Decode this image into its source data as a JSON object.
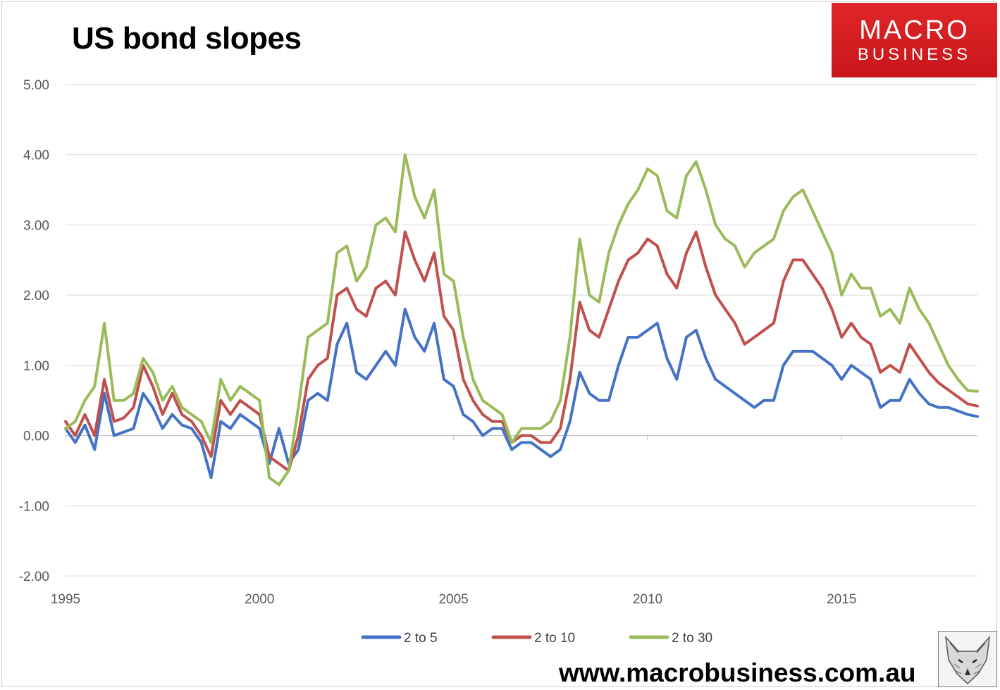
{
  "title": "US bond slopes",
  "logo": {
    "line1": "MACRO",
    "line2": "BUSINESS",
    "background": "#d91f24",
    "text_color": "#ffffff"
  },
  "website": "www.macrobusiness.com.au",
  "fox_icon": "fox-head-sketch-icon",
  "chart_data": {
    "type": "line",
    "title": "US bond slopes",
    "xlabel": "",
    "ylabel": "",
    "ylim": [
      -2,
      5
    ],
    "yticks": [
      "5.00",
      "4.00",
      "3.00",
      "2.00",
      "1.00",
      "0.00",
      "-1.00",
      "-2.00"
    ],
    "xlim": [
      1995,
      2018.5
    ],
    "xticks": [
      "1995",
      "2000",
      "2005",
      "2010",
      "2015"
    ],
    "grid": "horizontal",
    "legend_position": "bottom",
    "series": [
      {
        "name": "2 to 5",
        "color": "#4472c4",
        "points": [
          [
            1995.0,
            0.1
          ],
          [
            1995.25,
            -0.1
          ],
          [
            1995.5,
            0.15
          ],
          [
            1995.75,
            -0.2
          ],
          [
            1996.0,
            0.6
          ],
          [
            1996.25,
            0.0
          ],
          [
            1996.5,
            0.05
          ],
          [
            1996.75,
            0.1
          ],
          [
            1997.0,
            0.6
          ],
          [
            1997.25,
            0.4
          ],
          [
            1997.5,
            0.1
          ],
          [
            1997.75,
            0.3
          ],
          [
            1998.0,
            0.15
          ],
          [
            1998.25,
            0.1
          ],
          [
            1998.5,
            -0.1
          ],
          [
            1998.75,
            -0.6
          ],
          [
            1999.0,
            0.2
          ],
          [
            1999.25,
            0.1
          ],
          [
            1999.5,
            0.3
          ],
          [
            1999.75,
            0.2
          ],
          [
            2000.0,
            0.1
          ],
          [
            2000.25,
            -0.4
          ],
          [
            2000.5,
            0.1
          ],
          [
            2000.75,
            -0.4
          ],
          [
            2001.0,
            -0.2
          ],
          [
            2001.25,
            0.5
          ],
          [
            2001.5,
            0.6
          ],
          [
            2001.75,
            0.5
          ],
          [
            2002.0,
            1.3
          ],
          [
            2002.25,
            1.6
          ],
          [
            2002.5,
            0.9
          ],
          [
            2002.75,
            0.8
          ],
          [
            2003.0,
            1.0
          ],
          [
            2003.25,
            1.2
          ],
          [
            2003.5,
            1.0
          ],
          [
            2003.75,
            1.8
          ],
          [
            2004.0,
            1.4
          ],
          [
            2004.25,
            1.2
          ],
          [
            2004.5,
            1.6
          ],
          [
            2004.75,
            0.8
          ],
          [
            2005.0,
            0.7
          ],
          [
            2005.25,
            0.3
          ],
          [
            2005.5,
            0.2
          ],
          [
            2005.75,
            0.0
          ],
          [
            2006.0,
            0.1
          ],
          [
            2006.25,
            0.1
          ],
          [
            2006.5,
            -0.2
          ],
          [
            2006.75,
            -0.1
          ],
          [
            2007.0,
            -0.1
          ],
          [
            2007.25,
            -0.2
          ],
          [
            2007.5,
            -0.3
          ],
          [
            2007.75,
            -0.2
          ],
          [
            2008.0,
            0.2
          ],
          [
            2008.25,
            0.9
          ],
          [
            2008.5,
            0.6
          ],
          [
            2008.75,
            0.5
          ],
          [
            2009.0,
            0.5
          ],
          [
            2009.25,
            1.0
          ],
          [
            2009.5,
            1.4
          ],
          [
            2009.75,
            1.4
          ],
          [
            2010.0,
            1.5
          ],
          [
            2010.25,
            1.6
          ],
          [
            2010.5,
            1.1
          ],
          [
            2010.75,
            0.8
          ],
          [
            2011.0,
            1.4
          ],
          [
            2011.25,
            1.5
          ],
          [
            2011.5,
            1.1
          ],
          [
            2011.75,
            0.8
          ],
          [
            2012.0,
            0.7
          ],
          [
            2012.25,
            0.6
          ],
          [
            2012.5,
            0.5
          ],
          [
            2012.75,
            0.4
          ],
          [
            2013.0,
            0.5
          ],
          [
            2013.25,
            0.5
          ],
          [
            2013.5,
            1.0
          ],
          [
            2013.75,
            1.2
          ],
          [
            2014.0,
            1.2
          ],
          [
            2014.25,
            1.2
          ],
          [
            2014.5,
            1.1
          ],
          [
            2014.75,
            1.0
          ],
          [
            2015.0,
            0.8
          ],
          [
            2015.25,
            1.0
          ],
          [
            2015.5,
            0.9
          ],
          [
            2015.75,
            0.8
          ],
          [
            2016.0,
            0.4
          ],
          [
            2016.25,
            0.5
          ],
          [
            2016.5,
            0.5
          ],
          [
            2016.75,
            0.8
          ],
          [
            2017.0,
            0.6
          ],
          [
            2017.25,
            0.45
          ],
          [
            2017.5,
            0.4
          ],
          [
            2017.75,
            0.4
          ],
          [
            2018.0,
            0.35
          ],
          [
            2018.25,
            0.3
          ],
          [
            2018.5,
            0.27
          ]
        ]
      },
      {
        "name": "2 to 10",
        "color": "#c0504d",
        "points": [
          [
            1995.0,
            0.2
          ],
          [
            1995.25,
            0.0
          ],
          [
            1995.5,
            0.3
          ],
          [
            1995.75,
            0.0
          ],
          [
            1996.0,
            0.8
          ],
          [
            1996.25,
            0.2
          ],
          [
            1996.5,
            0.25
          ],
          [
            1996.75,
            0.4
          ],
          [
            1997.0,
            1.0
          ],
          [
            1997.25,
            0.7
          ],
          [
            1997.5,
            0.3
          ],
          [
            1997.75,
            0.6
          ],
          [
            1998.0,
            0.3
          ],
          [
            1998.25,
            0.2
          ],
          [
            1998.5,
            0.0
          ],
          [
            1998.75,
            -0.3
          ],
          [
            1999.0,
            0.5
          ],
          [
            1999.25,
            0.3
          ],
          [
            1999.5,
            0.5
          ],
          [
            1999.75,
            0.4
          ],
          [
            2000.0,
            0.3
          ],
          [
            2000.25,
            -0.3
          ],
          [
            2000.5,
            -0.4
          ],
          [
            2000.75,
            -0.5
          ],
          [
            2001.0,
            0.0
          ],
          [
            2001.25,
            0.8
          ],
          [
            2001.5,
            1.0
          ],
          [
            2001.75,
            1.1
          ],
          [
            2002.0,
            2.0
          ],
          [
            2002.25,
            2.1
          ],
          [
            2002.5,
            1.8
          ],
          [
            2002.75,
            1.7
          ],
          [
            2003.0,
            2.1
          ],
          [
            2003.25,
            2.2
          ],
          [
            2003.5,
            2.0
          ],
          [
            2003.75,
            2.9
          ],
          [
            2004.0,
            2.5
          ],
          [
            2004.25,
            2.2
          ],
          [
            2004.5,
            2.6
          ],
          [
            2004.75,
            1.7
          ],
          [
            2005.0,
            1.5
          ],
          [
            2005.25,
            0.8
          ],
          [
            2005.5,
            0.5
          ],
          [
            2005.75,
            0.3
          ],
          [
            2006.0,
            0.2
          ],
          [
            2006.25,
            0.2
          ],
          [
            2006.5,
            -0.1
          ],
          [
            2006.75,
            0.0
          ],
          [
            2007.0,
            0.0
          ],
          [
            2007.25,
            -0.1
          ],
          [
            2007.5,
            -0.1
          ],
          [
            2007.75,
            0.1
          ],
          [
            2008.0,
            0.8
          ],
          [
            2008.25,
            1.9
          ],
          [
            2008.5,
            1.5
          ],
          [
            2008.75,
            1.4
          ],
          [
            2009.0,
            1.8
          ],
          [
            2009.25,
            2.2
          ],
          [
            2009.5,
            2.5
          ],
          [
            2009.75,
            2.6
          ],
          [
            2010.0,
            2.8
          ],
          [
            2010.25,
            2.7
          ],
          [
            2010.5,
            2.3
          ],
          [
            2010.75,
            2.1
          ],
          [
            2011.0,
            2.6
          ],
          [
            2011.25,
            2.9
          ],
          [
            2011.5,
            2.4
          ],
          [
            2011.75,
            2.0
          ],
          [
            2012.0,
            1.8
          ],
          [
            2012.25,
            1.6
          ],
          [
            2012.5,
            1.3
          ],
          [
            2012.75,
            1.4
          ],
          [
            2013.0,
            1.5
          ],
          [
            2013.25,
            1.6
          ],
          [
            2013.5,
            2.2
          ],
          [
            2013.75,
            2.5
          ],
          [
            2014.0,
            2.5
          ],
          [
            2014.25,
            2.3
          ],
          [
            2014.5,
            2.1
          ],
          [
            2014.75,
            1.8
          ],
          [
            2015.0,
            1.4
          ],
          [
            2015.25,
            1.6
          ],
          [
            2015.5,
            1.4
          ],
          [
            2015.75,
            1.3
          ],
          [
            2016.0,
            0.9
          ],
          [
            2016.25,
            1.0
          ],
          [
            2016.5,
            0.9
          ],
          [
            2016.75,
            1.3
          ],
          [
            2017.0,
            1.1
          ],
          [
            2017.25,
            0.9
          ],
          [
            2017.5,
            0.75
          ],
          [
            2017.75,
            0.65
          ],
          [
            2018.0,
            0.55
          ],
          [
            2018.25,
            0.45
          ],
          [
            2018.5,
            0.42
          ]
        ]
      },
      {
        "name": "2 to 30",
        "color": "#9bbb59",
        "points": [
          [
            1995.0,
            0.1
          ],
          [
            1995.25,
            0.2
          ],
          [
            1995.5,
            0.5
          ],
          [
            1995.75,
            0.7
          ],
          [
            1996.0,
            1.6
          ],
          [
            1996.25,
            0.5
          ],
          [
            1996.5,
            0.5
          ],
          [
            1996.75,
            0.6
          ],
          [
            1997.0,
            1.1
          ],
          [
            1997.25,
            0.9
          ],
          [
            1997.5,
            0.5
          ],
          [
            1997.75,
            0.7
          ],
          [
            1998.0,
            0.4
          ],
          [
            1998.25,
            0.3
          ],
          [
            1998.5,
            0.2
          ],
          [
            1998.75,
            -0.1
          ],
          [
            1999.0,
            0.8
          ],
          [
            1999.25,
            0.5
          ],
          [
            1999.5,
            0.7
          ],
          [
            1999.75,
            0.6
          ],
          [
            2000.0,
            0.5
          ],
          [
            2000.25,
            -0.6
          ],
          [
            2000.5,
            -0.7
          ],
          [
            2000.75,
            -0.5
          ],
          [
            2001.0,
            0.4
          ],
          [
            2001.25,
            1.4
          ],
          [
            2001.5,
            1.5
          ],
          [
            2001.75,
            1.6
          ],
          [
            2002.0,
            2.6
          ],
          [
            2002.25,
            2.7
          ],
          [
            2002.5,
            2.2
          ],
          [
            2002.75,
            2.4
          ],
          [
            2003.0,
            3.0
          ],
          [
            2003.25,
            3.1
          ],
          [
            2003.5,
            2.9
          ],
          [
            2003.75,
            4.0
          ],
          [
            2004.0,
            3.4
          ],
          [
            2004.25,
            3.1
          ],
          [
            2004.5,
            3.5
          ],
          [
            2004.75,
            2.3
          ],
          [
            2005.0,
            2.2
          ],
          [
            2005.25,
            1.4
          ],
          [
            2005.5,
            0.8
          ],
          [
            2005.75,
            0.5
          ],
          [
            2006.0,
            0.4
          ],
          [
            2006.25,
            0.3
          ],
          [
            2006.5,
            -0.1
          ],
          [
            2006.75,
            0.1
          ],
          [
            2007.0,
            0.1
          ],
          [
            2007.25,
            0.1
          ],
          [
            2007.5,
            0.2
          ],
          [
            2007.75,
            0.5
          ],
          [
            2008.0,
            1.4
          ],
          [
            2008.25,
            2.8
          ],
          [
            2008.5,
            2.0
          ],
          [
            2008.75,
            1.9
          ],
          [
            2009.0,
            2.6
          ],
          [
            2009.25,
            3.0
          ],
          [
            2009.5,
            3.3
          ],
          [
            2009.75,
            3.5
          ],
          [
            2010.0,
            3.8
          ],
          [
            2010.25,
            3.7
          ],
          [
            2010.5,
            3.2
          ],
          [
            2010.75,
            3.1
          ],
          [
            2011.0,
            3.7
          ],
          [
            2011.25,
            3.9
          ],
          [
            2011.5,
            3.5
          ],
          [
            2011.75,
            3.0
          ],
          [
            2012.0,
            2.8
          ],
          [
            2012.25,
            2.7
          ],
          [
            2012.5,
            2.4
          ],
          [
            2012.75,
            2.6
          ],
          [
            2013.0,
            2.7
          ],
          [
            2013.25,
            2.8
          ],
          [
            2013.5,
            3.2
          ],
          [
            2013.75,
            3.4
          ],
          [
            2014.0,
            3.5
          ],
          [
            2014.25,
            3.2
          ],
          [
            2014.5,
            2.9
          ],
          [
            2014.75,
            2.6
          ],
          [
            2015.0,
            2.0
          ],
          [
            2015.25,
            2.3
          ],
          [
            2015.5,
            2.1
          ],
          [
            2015.75,
            2.1
          ],
          [
            2016.0,
            1.7
          ],
          [
            2016.25,
            1.8
          ],
          [
            2016.5,
            1.6
          ],
          [
            2016.75,
            2.1
          ],
          [
            2017.0,
            1.8
          ],
          [
            2017.25,
            1.6
          ],
          [
            2017.5,
            1.3
          ],
          [
            2017.75,
            1.0
          ],
          [
            2018.0,
            0.8
          ],
          [
            2018.25,
            0.64
          ],
          [
            2018.5,
            0.63
          ]
        ]
      }
    ]
  }
}
